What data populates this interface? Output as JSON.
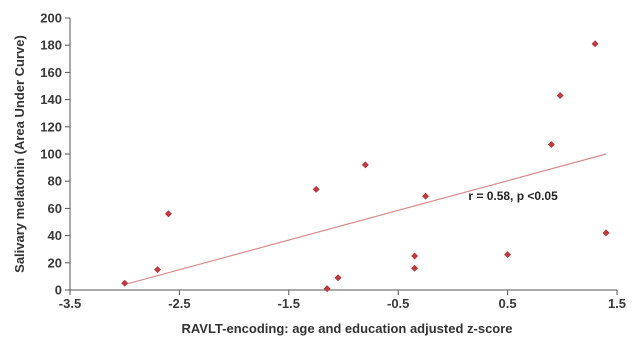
{
  "chart_data": {
    "type": "scatter",
    "xlabel": "RAVLT-encoding: age and education adjusted z-score",
    "ylabel": "Salivary melatonin (Area Under Curve)",
    "xlim": [
      -3.5,
      1.5
    ],
    "ylim": [
      0,
      200
    ],
    "x_ticks": [
      -3.5,
      -2.5,
      -1.5,
      -0.5,
      0.5,
      1.5
    ],
    "x_tick_labels": [
      "-3.5",
      "-2.5",
      "-1.5",
      "-0.5",
      "0.5",
      "1.5"
    ],
    "y_ticks": [
      0,
      20,
      40,
      60,
      80,
      100,
      120,
      140,
      160,
      180,
      200
    ],
    "y_tick_labels": [
      "0",
      "20",
      "40",
      "60",
      "80",
      "100",
      "120",
      "140",
      "160",
      "180",
      "200"
    ],
    "grid": false,
    "legend": "none",
    "marker_color": "#c0393f",
    "trendline_color": "#d98b8b",
    "points": [
      {
        "x": -3.0,
        "y": 5
      },
      {
        "x": -2.7,
        "y": 15
      },
      {
        "x": -2.6,
        "y": 56
      },
      {
        "x": -1.25,
        "y": 74
      },
      {
        "x": -1.15,
        "y": 1
      },
      {
        "x": -1.05,
        "y": 9
      },
      {
        "x": -0.8,
        "y": 92
      },
      {
        "x": -0.35,
        "y": 25
      },
      {
        "x": -0.35,
        "y": 16
      },
      {
        "x": -0.25,
        "y": 69
      },
      {
        "x": 0.5,
        "y": 26
      },
      {
        "x": 0.9,
        "y": 107
      },
      {
        "x": 0.98,
        "y": 143
      },
      {
        "x": 1.3,
        "y": 181
      },
      {
        "x": 1.4,
        "y": 42
      }
    ],
    "trendline": {
      "x": [
        -3.0,
        1.4
      ],
      "y": [
        4,
        100
      ]
    },
    "annotation": {
      "text": "r = 0.58, p <0.05",
      "x": 0.55,
      "y": 66
    }
  }
}
